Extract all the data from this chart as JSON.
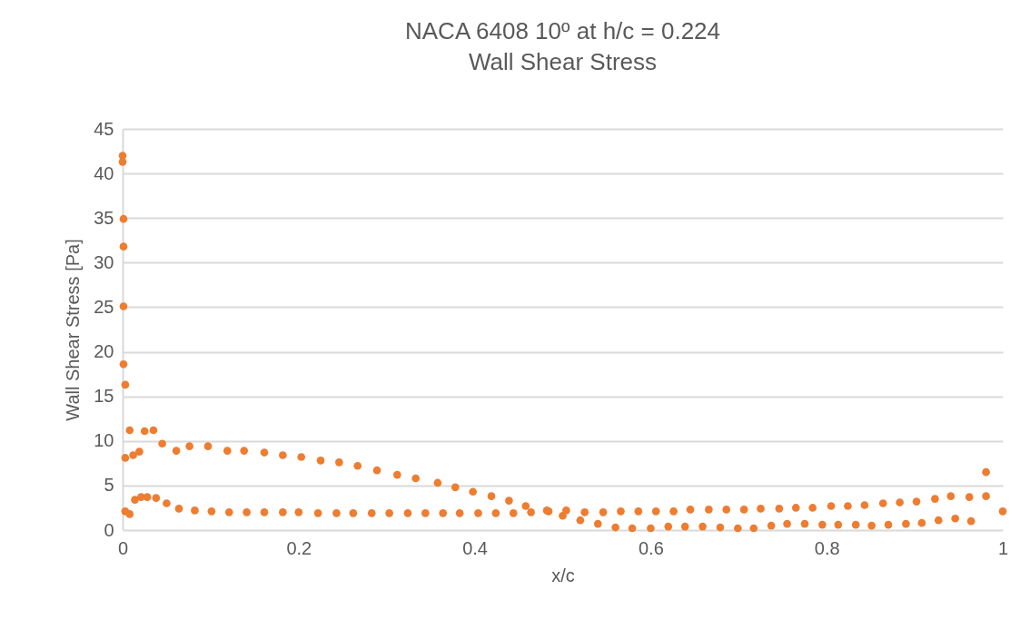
{
  "chart_data": {
    "type": "scatter",
    "title": "NACA 6408 10º at h/c = 0.224",
    "subtitle": "Wall Shear Stress",
    "xlabel": "x/c",
    "ylabel": "Wall Shear Stress [Pa]",
    "x": [
      0,
      0,
      0.001,
      0.001,
      0.001,
      0.001,
      0.003,
      0.003,
      0.008,
      0.014,
      0.021,
      0.028,
      0.038,
      0.05,
      0.064,
      0.082,
      0.101,
      0.121,
      0.141,
      0.161,
      0.182,
      0.2,
      0.222,
      0.243,
      0.262,
      0.283,
      0.303,
      0.324,
      0.344,
      0.364,
      0.383,
      0.404,
      0.424,
      0.444,
      0.464,
      0.484,
      0.5,
      0.52,
      0.54,
      0.56,
      0.579,
      0.6,
      0.62,
      0.639,
      0.659,
      0.679,
      0.699,
      0.717,
      0.737,
      0.755,
      0.775,
      0.795,
      0.813,
      0.833,
      0.851,
      0.87,
      0.89,
      0.908,
      0.927,
      0.946,
      0.964,
      1.0,
      0.981,
      0.981,
      0.962,
      0.941,
      0.923,
      0.902,
      0.883,
      0.864,
      0.843,
      0.824,
      0.805,
      0.784,
      0.765,
      0.746,
      0.725,
      0.706,
      0.686,
      0.666,
      0.645,
      0.626,
      0.606,
      0.586,
      0.566,
      0.546,
      0.525,
      0.504,
      0.482,
      0.458,
      0.439,
      0.419,
      0.398,
      0.378,
      0.358,
      0.333,
      0.312,
      0.289,
      0.267,
      0.246,
      0.225,
      0.203,
      0.182,
      0.161,
      0.138,
      0.119,
      0.097,
      0.076,
      0.061,
      0.045,
      0.035,
      0.025,
      0.019,
      0.012,
      0.008,
      0.003
    ],
    "series": [
      {
        "color": "#ed7d31",
        "values": [
          42.0,
          41.3,
          34.9,
          31.8,
          25.1,
          18.6,
          16.3,
          2.1,
          1.8,
          3.4,
          3.7,
          3.7,
          3.6,
          3.0,
          2.4,
          2.2,
          2.1,
          2.0,
          2.0,
          2.0,
          2.0,
          2.0,
          1.9,
          1.9,
          1.9,
          1.9,
          1.9,
          1.9,
          1.9,
          1.9,
          1.9,
          1.9,
          1.9,
          1.9,
          2.0,
          2.1,
          1.6,
          1.1,
          0.7,
          0.3,
          0.2,
          0.2,
          0.4,
          0.4,
          0.4,
          0.3,
          0.2,
          0.2,
          0.5,
          0.7,
          0.7,
          0.6,
          0.6,
          0.6,
          0.5,
          0.6,
          0.7,
          0.8,
          1.1,
          1.3,
          1.0,
          2.1,
          3.8,
          6.5,
          3.7,
          3.8,
          3.5,
          3.2,
          3.1,
          3.0,
          2.8,
          2.7,
          2.7,
          2.5,
          2.5,
          2.4,
          2.4,
          2.3,
          2.3,
          2.3,
          2.3,
          2.1,
          2.1,
          2.1,
          2.1,
          2.0,
          2.0,
          2.2,
          2.2,
          2.7,
          3.3,
          3.8,
          4.3,
          4.8,
          5.3,
          5.8,
          6.2,
          6.7,
          7.2,
          7.6,
          7.8,
          8.2,
          8.4,
          8.7,
          8.9,
          8.9,
          9.4,
          9.4,
          8.9,
          9.7,
          11.2,
          11.1,
          8.8,
          8.4,
          11.2,
          8.1
        ]
      }
    ],
    "xlim": [
      0,
      1
    ],
    "xticks": [
      0,
      0.2,
      0.4,
      0.6,
      0.8,
      1
    ],
    "ylim": [
      0,
      45
    ],
    "yticks": [
      0,
      5,
      10,
      15,
      20,
      25,
      30,
      35,
      40,
      45
    ],
    "grid": "y",
    "marker": "circle"
  }
}
